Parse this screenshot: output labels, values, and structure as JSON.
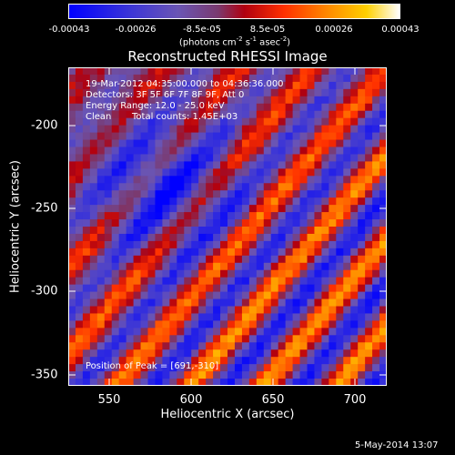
{
  "colorbar": {
    "ticks": [
      "-0.00043",
      "-0.00026",
      "-8.5e-05",
      "8.5e-05",
      "0.00026",
      "0.00043"
    ],
    "unit_prefix": "(photons cm",
    "unit_sup1": "-2",
    "unit_mid1": " s",
    "unit_sup2": "-1",
    "unit_mid2": " asec",
    "unit_sup3": "-2",
    "unit_suffix": ")"
  },
  "chart_data": {
    "type": "heatmap",
    "title": "Reconstructed RHESSI Image",
    "xlabel": "Heliocentric X (arcsec)",
    "ylabel": "Heliocentric Y (arcsec)",
    "xlim": [
      525,
      718
    ],
    "ylim": [
      -362,
      -171
    ],
    "xticks": [
      "550",
      "600",
      "650",
      "700"
    ],
    "yticks": [
      "-200",
      "-250",
      "-300",
      "-350"
    ],
    "value_range": [
      -0.00043,
      0.00043
    ],
    "stripe_orientation": "diagonal, upper-left to lower-right",
    "peak_position": [
      691,
      -310
    ]
  },
  "annotations": {
    "time_range": "19-Mar-2012 04:35:00.000 to 04:36:36.000",
    "detectors": "Detectors: 3F 5F 6F 7F 8F 9F, Att 0",
    "energy_range": "Energy Range: 12.0 - 25.0 keV",
    "clean": "Clean",
    "total_counts": "Total counts: 1.45E+03",
    "peak": "Position of Peak = [691,-310]"
  },
  "footer": "5-May-2014 13:07"
}
